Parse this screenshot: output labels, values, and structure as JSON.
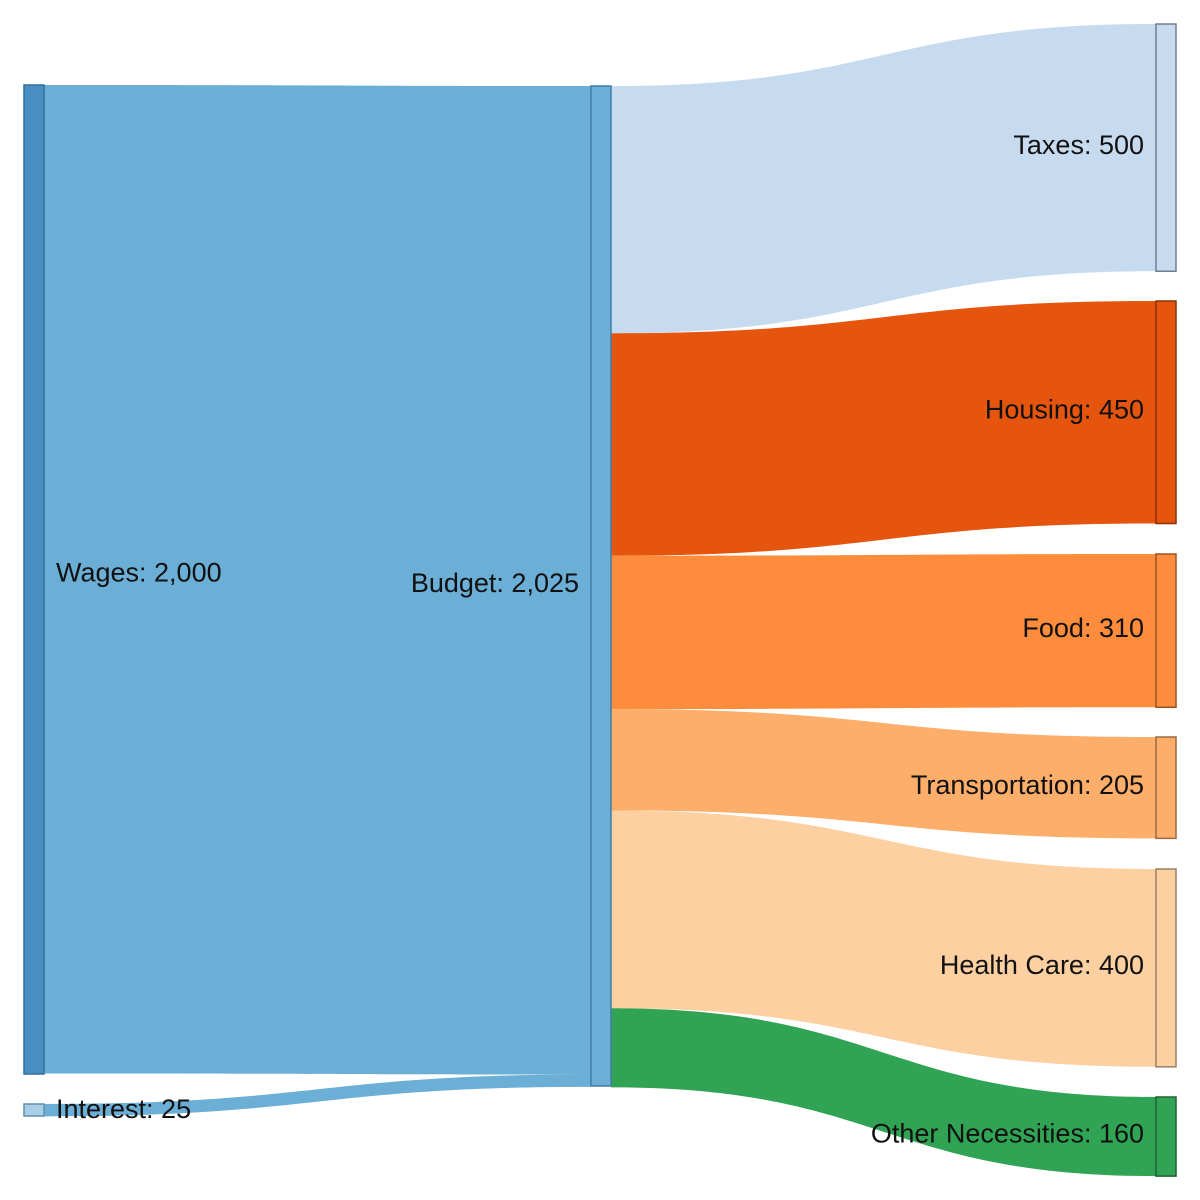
{
  "chart_data": {
    "type": "sankey",
    "nodes": [
      {
        "id": "wages",
        "name": "Wages",
        "value": 2000,
        "value_label": "2,000",
        "column": 0,
        "color": "#4a8fc3",
        "stroke": "#2f6f9f"
      },
      {
        "id": "interest",
        "name": "Interest",
        "value": 25,
        "value_label": "25",
        "column": 0,
        "color": "#a9cfe6",
        "stroke": "#5f8fb0"
      },
      {
        "id": "budget",
        "name": "Budget",
        "value": 2025,
        "value_label": "2,025",
        "column": 1,
        "color": "#6baed6",
        "stroke": "#3f7fa6"
      },
      {
        "id": "taxes",
        "name": "Taxes",
        "value": 500,
        "value_label": "500",
        "column": 2,
        "color": "#c6dbef",
        "stroke": "#6f7f8f"
      },
      {
        "id": "housing",
        "name": "Housing",
        "value": 450,
        "value_label": "450",
        "column": 2,
        "color": "#e6550d",
        "stroke": "#8a3208"
      },
      {
        "id": "food",
        "name": "Food",
        "value": 310,
        "value_label": "310",
        "column": 2,
        "color": "#fd8d3c",
        "stroke": "#9a5424"
      },
      {
        "id": "transportation",
        "name": "Transportation",
        "value": 205,
        "value_label": "205",
        "column": 2,
        "color": "#fdae6b",
        "stroke": "#9a6a40"
      },
      {
        "id": "healthcare",
        "name": "Health Care",
        "value": 400,
        "value_label": "400",
        "column": 2,
        "color": "#fdd0a2",
        "stroke": "#9a7f62"
      },
      {
        "id": "other",
        "name": "Other Necessities",
        "value": 160,
        "value_label": "160",
        "column": 2,
        "color": "#31a354",
        "stroke": "#1d6232"
      }
    ],
    "links": [
      {
        "source": "wages",
        "target": "budget",
        "value": 2000,
        "color": "#6baed6"
      },
      {
        "source": "interest",
        "target": "budget",
        "value": 25,
        "color": "#6baed6"
      },
      {
        "source": "budget",
        "target": "taxes",
        "value": 500,
        "color": "#c6dbef"
      },
      {
        "source": "budget",
        "target": "housing",
        "value": 450,
        "color": "#e6550d"
      },
      {
        "source": "budget",
        "target": "food",
        "value": 310,
        "color": "#fd8d3c"
      },
      {
        "source": "budget",
        "target": "transportation",
        "value": 205,
        "color": "#fdae6b"
      },
      {
        "source": "budget",
        "target": "healthcare",
        "value": 400,
        "color": "#fdd0a2"
      },
      {
        "source": "budget",
        "target": "other",
        "value": 160,
        "color": "#31a354"
      }
    ]
  }
}
